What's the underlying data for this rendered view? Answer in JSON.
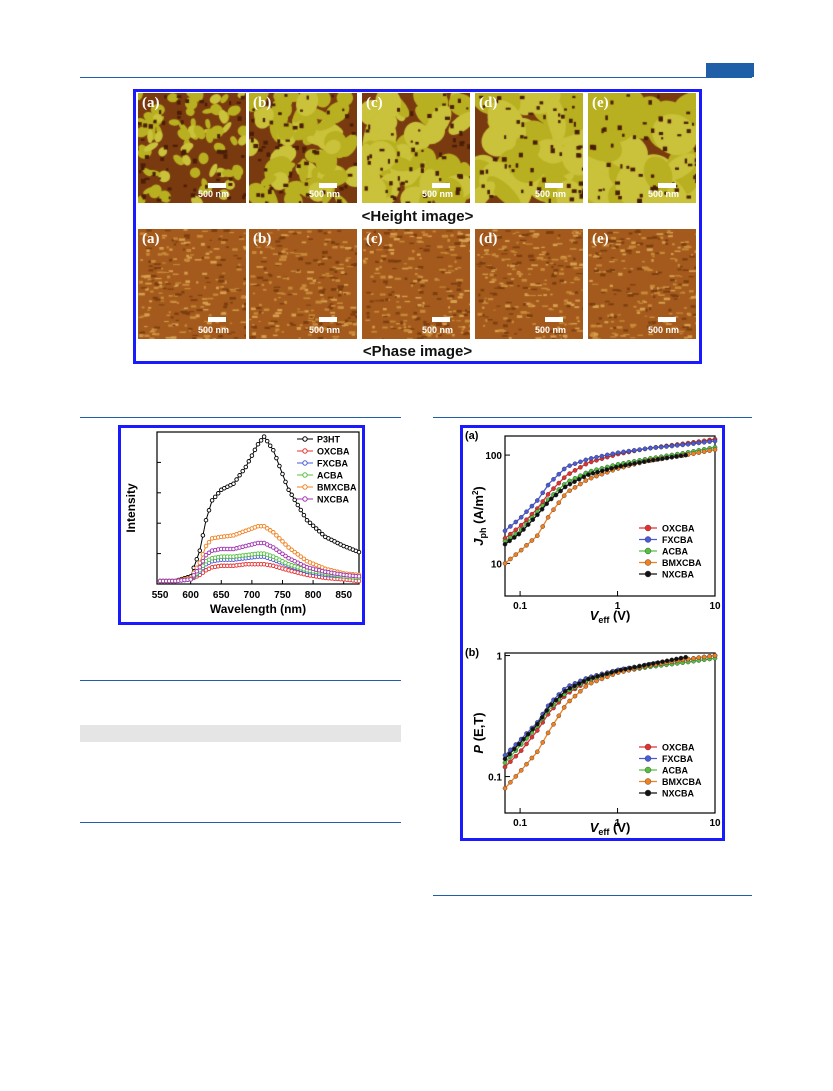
{
  "header": {
    "accent_color": "#1f5fa8"
  },
  "afm_figure": {
    "border_color": "#1a1aff",
    "height_caption": "<Height image>",
    "phase_caption": "<Phase image>",
    "panel_labels": [
      "(a)",
      "(b)",
      "(c)",
      "(d)",
      "(e)"
    ],
    "scale_label": "500 nm"
  },
  "chart_data": [
    {
      "type": "line",
      "xlabel": "Wavelength (nm)",
      "ylabel": "Intensity",
      "xlim": [
        545,
        875
      ],
      "xticks": [
        550,
        600,
        650,
        700,
        750,
        800,
        850
      ],
      "legend_position": "top-right",
      "x": [
        550,
        575,
        600,
        615,
        625,
        635,
        650,
        670,
        690,
        710,
        720,
        735,
        760,
        790,
        820,
        850,
        875
      ],
      "series": [
        {
          "name": "P3HT",
          "color": "#000000",
          "values": [
            0.02,
            0.02,
            0.05,
            0.22,
            0.42,
            0.55,
            0.62,
            0.66,
            0.77,
            0.92,
            0.97,
            0.88,
            0.62,
            0.42,
            0.31,
            0.25,
            0.21
          ]
        },
        {
          "name": "OXCBA",
          "color": "#e53030",
          "values": [
            0.02,
            0.02,
            0.03,
            0.06,
            0.09,
            0.11,
            0.12,
            0.12,
            0.13,
            0.13,
            0.13,
            0.12,
            0.09,
            0.06,
            0.04,
            0.03,
            0.02
          ]
        },
        {
          "name": "FXCBA",
          "color": "#4a5ad8",
          "values": [
            0.02,
            0.02,
            0.03,
            0.08,
            0.13,
            0.15,
            0.16,
            0.16,
            0.17,
            0.18,
            0.18,
            0.16,
            0.12,
            0.08,
            0.06,
            0.05,
            0.04
          ]
        },
        {
          "name": "ACBA",
          "color": "#55c040",
          "values": [
            0.02,
            0.02,
            0.03,
            0.09,
            0.15,
            0.17,
            0.18,
            0.18,
            0.19,
            0.2,
            0.2,
            0.18,
            0.13,
            0.09,
            0.07,
            0.05,
            0.04
          ]
        },
        {
          "name": "BMXCBA",
          "color": "#f08020",
          "values": [
            0.02,
            0.02,
            0.04,
            0.14,
            0.25,
            0.3,
            0.31,
            0.32,
            0.35,
            0.38,
            0.38,
            0.34,
            0.24,
            0.15,
            0.1,
            0.07,
            0.06
          ]
        },
        {
          "name": "NXCBA",
          "color": "#a030b0",
          "values": [
            0.02,
            0.02,
            0.03,
            0.11,
            0.19,
            0.22,
            0.23,
            0.23,
            0.25,
            0.27,
            0.27,
            0.24,
            0.17,
            0.11,
            0.08,
            0.06,
            0.05
          ]
        }
      ]
    },
    {
      "type": "line",
      "panel_label": "(a)",
      "xlabel": "V_eff (V)",
      "ylabel": "J_ph (A/m2)",
      "xscale": "log",
      "yscale": "log",
      "xlim": [
        0.07,
        10
      ],
      "ylim": [
        5,
        150
      ],
      "xticks": [
        0.1,
        1,
        10
      ],
      "yticks": [
        10,
        100
      ],
      "legend_position": "bottom-right",
      "series": [
        {
          "name": "OXCBA",
          "color": "#e53030",
          "x": [
            0.07,
            0.1,
            0.15,
            0.2,
            0.3,
            0.5,
            1,
            2,
            5,
            10
          ],
          "values": [
            17,
            22,
            32,
            45,
            65,
            85,
            102,
            115,
            128,
            140
          ]
        },
        {
          "name": "FXCBA",
          "color": "#4a5ad8",
          "x": [
            0.07,
            0.1,
            0.15,
            0.2,
            0.3,
            0.5,
            1,
            2,
            5,
            10
          ],
          "values": [
            20,
            26,
            38,
            55,
            78,
            92,
            105,
            115,
            125,
            135
          ]
        },
        {
          "name": "ACBA",
          "color": "#55c040",
          "x": [
            0.07,
            0.1,
            0.15,
            0.2,
            0.3,
            0.5,
            1,
            2,
            5,
            10
          ],
          "values": [
            16,
            20,
            30,
            40,
            56,
            70,
            82,
            92,
            105,
            118
          ]
        },
        {
          "name": "BMXCBA",
          "color": "#f08020",
          "x": [
            0.07,
            0.1,
            0.15,
            0.2,
            0.3,
            0.5,
            1,
            2,
            5,
            10
          ],
          "values": [
            10,
            13,
            18,
            28,
            45,
            60,
            75,
            88,
            100,
            112
          ]
        },
        {
          "name": "NXCBA",
          "color": "#111111",
          "x": [
            0.07,
            0.1,
            0.15,
            0.2,
            0.3,
            0.5,
            1,
            2,
            5
          ],
          "values": [
            15,
            19,
            28,
            38,
            52,
            66,
            78,
            88,
            100
          ]
        }
      ]
    },
    {
      "type": "line",
      "panel_label": "(b)",
      "xlabel": "V_eff (V)",
      "ylabel": "P (E,T)",
      "xscale": "log",
      "yscale": "log",
      "xlim": [
        0.07,
        10
      ],
      "ylim": [
        0.05,
        1.05
      ],
      "xticks": [
        0.1,
        1,
        10
      ],
      "yticks": [
        0.1,
        1
      ],
      "legend_position": "bottom-right",
      "series": [
        {
          "name": "OXCBA",
          "color": "#e53030",
          "x": [
            0.07,
            0.1,
            0.15,
            0.2,
            0.3,
            0.5,
            1,
            2,
            5,
            10
          ],
          "values": [
            0.12,
            0.16,
            0.24,
            0.34,
            0.48,
            0.62,
            0.74,
            0.82,
            0.92,
            1.0
          ]
        },
        {
          "name": "FXCBA",
          "color": "#4a5ad8",
          "x": [
            0.07,
            0.1,
            0.15,
            0.2,
            0.3,
            0.5,
            1,
            2,
            5,
            10
          ],
          "values": [
            0.15,
            0.2,
            0.28,
            0.4,
            0.55,
            0.66,
            0.76,
            0.84,
            0.93,
            1.0
          ]
        },
        {
          "name": "ACBA",
          "color": "#55c040",
          "x": [
            0.07,
            0.1,
            0.15,
            0.2,
            0.3,
            0.5,
            1,
            2,
            5,
            10
          ],
          "values": [
            0.13,
            0.18,
            0.26,
            0.36,
            0.5,
            0.63,
            0.73,
            0.8,
            0.88,
            0.95
          ]
        },
        {
          "name": "BMXCBA",
          "color": "#f08020",
          "x": [
            0.07,
            0.1,
            0.15,
            0.2,
            0.3,
            0.5,
            1,
            2,
            5,
            10
          ],
          "values": [
            0.08,
            0.11,
            0.16,
            0.24,
            0.4,
            0.58,
            0.72,
            0.82,
            0.93,
            1.0
          ]
        },
        {
          "name": "NXCBA",
          "color": "#111111",
          "x": [
            0.07,
            0.1,
            0.15,
            0.2,
            0.3,
            0.5,
            1,
            2,
            5
          ],
          "values": [
            0.14,
            0.19,
            0.27,
            0.38,
            0.52,
            0.64,
            0.75,
            0.84,
            0.97
          ]
        }
      ]
    }
  ]
}
